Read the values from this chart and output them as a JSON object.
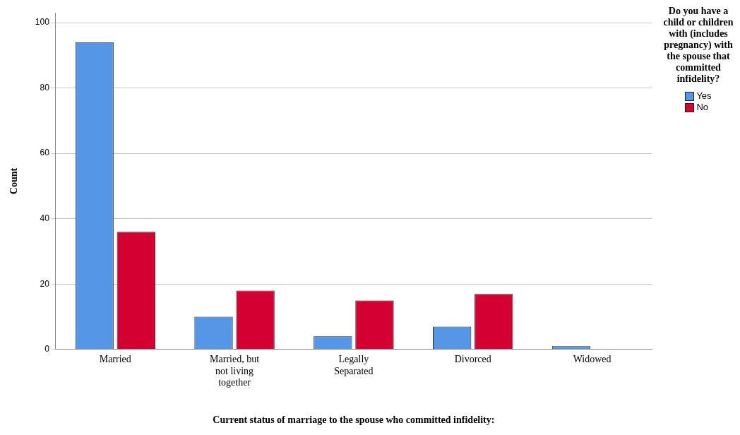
{
  "chart_data": {
    "type": "bar",
    "xlabel": "Current status of marriage to the spouse who committed infidelity:",
    "ylabel": "Count",
    "legend_title": "Do you have a child or children with (includes pregnancy) with the spouse that committed infidelity?",
    "categories": [
      "Married",
      "Married, but not living together",
      "Legally Separated",
      "Divorced",
      "Widowed"
    ],
    "series": [
      {
        "name": "Yes",
        "color": "#5596e6",
        "values": [
          94,
          10,
          4,
          7,
          1
        ]
      },
      {
        "name": "No",
        "color": "#d50032",
        "values": [
          36,
          18,
          15,
          17,
          0
        ]
      }
    ],
    "ylim": [
      0,
      103
    ],
    "yticks": [
      0,
      20,
      40,
      60,
      80,
      100
    ],
    "grid": "y",
    "legend": "right"
  }
}
